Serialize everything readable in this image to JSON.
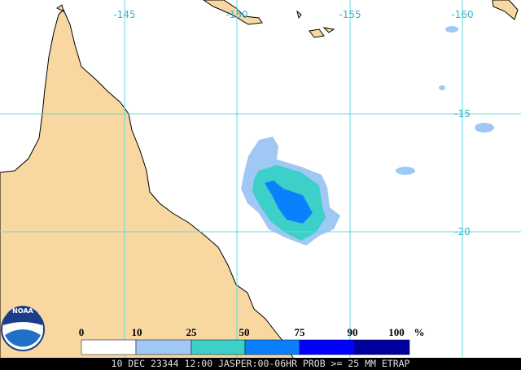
{
  "map": {
    "lon_labels": [
      "-145",
      "-150",
      "-155",
      "-160"
    ],
    "lat_labels": [
      "-15",
      "-20"
    ],
    "legend": {
      "labels": [
        0,
        10,
        25,
        50,
        75,
        90,
        100
      ],
      "unit": "%",
      "colors": [
        "#ffffff",
        "#a0c8f4",
        "#3cd0c8",
        "#0a80ff",
        "#0000ff",
        "#0000a0"
      ]
    },
    "footer": "10 DEC 23344 12:00 JASPER:00-06HR PROB >= 25 MM ETRAP",
    "logo": "NOAA"
  }
}
